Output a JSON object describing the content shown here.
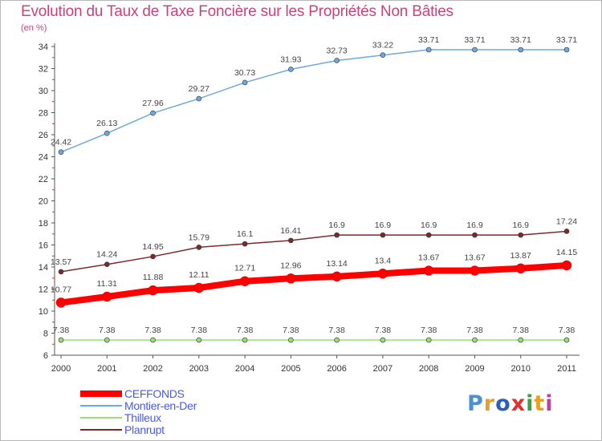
{
  "chart_data": {
    "type": "line",
    "title": "Evolution du Taux de Taxe Foncière sur les Propriétés Non Bâties",
    "subtitle": "(en %)",
    "categories": [
      "2000",
      "2001",
      "2002",
      "2003",
      "2004",
      "2005",
      "2006",
      "2007",
      "2008",
      "2009",
      "2010",
      "2011"
    ],
    "ylim": [
      6,
      34
    ],
    "yticks": [
      "6",
      "8",
      "10",
      "12",
      "14",
      "16",
      "18",
      "20",
      "22",
      "24",
      "26",
      "28",
      "30",
      "32",
      "34"
    ],
    "grid": false,
    "legend_position": "bottom-left",
    "series": [
      {
        "name": "CEFFONDS",
        "color": "#ff0000",
        "values": [
          10.77,
          11.31,
          11.88,
          12.11,
          12.71,
          12.96,
          13.14,
          13.4,
          13.67,
          13.67,
          13.87,
          14.15
        ],
        "labels": [
          "10.77",
          "11.31",
          "11.88",
          "12.11",
          "12.71",
          "12.96",
          "13.14",
          "13.4",
          "13.67",
          "13.67",
          "13.87",
          "14.15"
        ]
      },
      {
        "name": "Montier-en-Der",
        "color": "#6fa8dc",
        "values": [
          24.42,
          26.13,
          27.96,
          29.27,
          30.73,
          31.93,
          32.73,
          33.22,
          33.71,
          33.71,
          33.71,
          33.71
        ],
        "labels": [
          "24.42",
          "26.13",
          "27.96",
          "29.27",
          "30.73",
          "31.93",
          "32.73",
          "33.22",
          "33.71",
          "33.71",
          "33.71",
          "33.71"
        ]
      },
      {
        "name": "Thilleux",
        "color": "#99dd77",
        "values": [
          7.38,
          7.38,
          7.38,
          7.38,
          7.38,
          7.38,
          7.38,
          7.38,
          7.38,
          7.38,
          7.38,
          7.38
        ],
        "labels": [
          "7.38",
          "7.38",
          "7.38",
          "7.38",
          "7.38",
          "7.38",
          "7.38",
          "7.38",
          "7.38",
          "7.38",
          "7.38",
          "7.38"
        ]
      },
      {
        "name": "Planrupt",
        "color": "#7a2a2a",
        "values": [
          13.57,
          14.24,
          14.95,
          15.79,
          16.1,
          16.41,
          16.9,
          16.9,
          16.9,
          16.9,
          16.9,
          17.24
        ],
        "labels": [
          "13.57",
          "14.24",
          "14.95",
          "15.79",
          "16.1",
          "16.41",
          "16.9",
          "16.9",
          "16.9",
          "16.9",
          "16.9",
          "17.24"
        ]
      }
    ]
  },
  "logo": {
    "text": "Proxiti",
    "colors": [
      "#4a90d9",
      "#e8a020",
      "#2a5fbf",
      "#e03030",
      "#3aa040",
      "#e8a020",
      "#c040a0"
    ]
  }
}
